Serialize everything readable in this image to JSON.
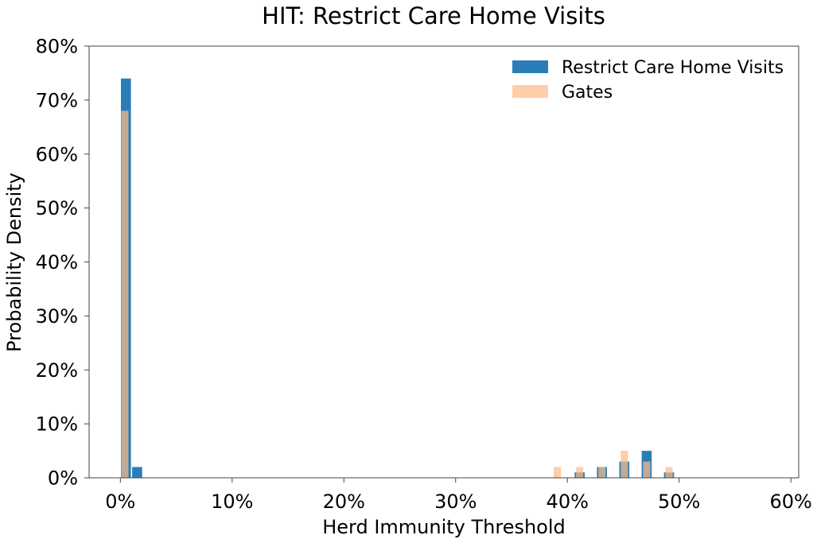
{
  "chart_data": {
    "type": "bar",
    "title": "HIT: Restrict Care Home Visits",
    "xlabel": "Herd Immunity Threshold",
    "ylabel": "Probability Density",
    "xlim": [
      -0.028,
      0.607
    ],
    "ylim": [
      0,
      0.8
    ],
    "x_ticks": [
      0,
      0.1,
      0.2,
      0.3,
      0.4,
      0.5,
      0.6
    ],
    "x_tick_labels": [
      "0%",
      "10%",
      "20%",
      "30%",
      "40%",
      "50%",
      "60%"
    ],
    "y_ticks": [
      0,
      0.1,
      0.2,
      0.3,
      0.4,
      0.5,
      0.6,
      0.7,
      0.8
    ],
    "y_tick_labels": [
      "0%",
      "10%",
      "20%",
      "30%",
      "40%",
      "50%",
      "60%",
      "70%",
      "80%"
    ],
    "grid": false,
    "legend_position": "top-right",
    "series": [
      {
        "name": "Restrict Care Home Visits",
        "color": "#1f77b4",
        "opacity": 0.95,
        "bin_width": 0.009,
        "x": [
          0.005,
          0.015,
          0.411,
          0.431,
          0.451,
          0.471,
          0.491
        ],
        "values": [
          0.74,
          0.02,
          0.01,
          0.02,
          0.03,
          0.05,
          0.01
        ]
      },
      {
        "name": "Gates",
        "color": "#ffbb88",
        "opacity": 0.72,
        "bin_width": 0.0065,
        "x": [
          0.004,
          0.391,
          0.411,
          0.431,
          0.451,
          0.471,
          0.491
        ],
        "values": [
          0.68,
          0.02,
          0.02,
          0.02,
          0.05,
          0.03,
          0.02
        ]
      }
    ]
  }
}
